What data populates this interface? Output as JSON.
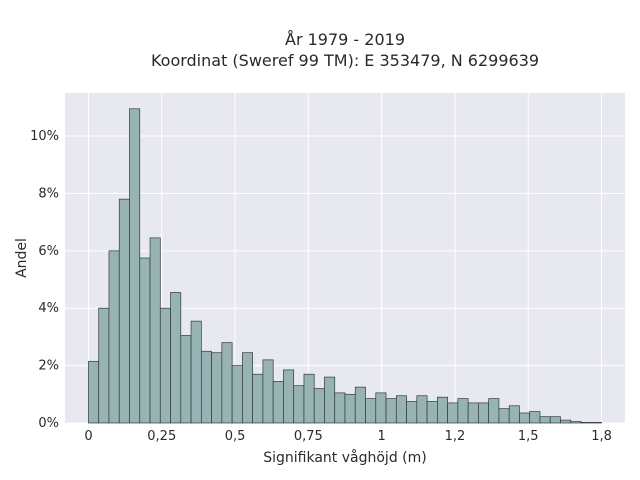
{
  "chart_data": {
    "type": "bar",
    "title": "År 1979 - 2019",
    "subtitle": "Koordinat (Sweref 99 TM): E 353479, N 6299639",
    "xlabel": "Signifikant våghöjd (m)",
    "ylabel": "Andel",
    "xlim": [
      -0.08,
      1.83
    ],
    "ylim": [
      0,
      11.5
    ],
    "x_ticks": [
      0,
      0.25,
      0.5,
      0.75,
      1,
      1.25,
      1.5,
      1.75
    ],
    "x_tick_labels": [
      "0",
      "0,25",
      "0,5",
      "0,75",
      "1",
      "1,2",
      "1,5",
      "1,8"
    ],
    "y_ticks": [
      0,
      2,
      4,
      6,
      8,
      10
    ],
    "y_tick_labels": [
      "0%",
      "2%",
      "4%",
      "6%",
      "8%",
      "10%"
    ],
    "bin_start": 0,
    "bin_width": 0.035,
    "values": [
      2.15,
      4.0,
      6.0,
      7.8,
      10.95,
      5.75,
      6.45,
      4.0,
      4.55,
      3.05,
      3.55,
      2.5,
      2.45,
      2.8,
      2.0,
      2.45,
      1.7,
      2.2,
      1.45,
      1.85,
      1.3,
      1.7,
      1.2,
      1.6,
      1.05,
      1.0,
      1.25,
      0.85,
      1.05,
      0.85,
      0.95,
      0.75,
      0.95,
      0.75,
      0.9,
      0.7,
      0.85,
      0.7,
      0.7,
      0.85,
      0.5,
      0.6,
      0.35,
      0.4,
      0.22,
      0.22,
      0.1,
      0.05,
      0.02,
      0.02
    ],
    "grid": true,
    "colors": {
      "bar_fill": "#98b3b3",
      "bar_stroke": "#2f3b3b",
      "plot_bg": "#e8e8f0",
      "grid": "#ffffff"
    }
  }
}
